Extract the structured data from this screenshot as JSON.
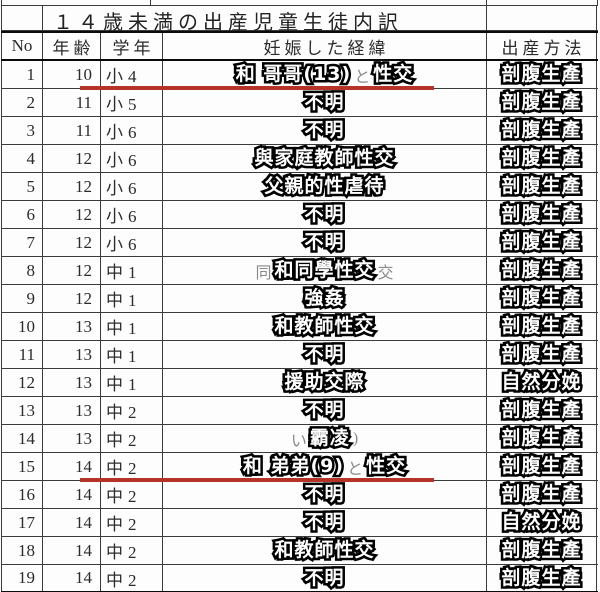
{
  "title": "１４歳未満の出産児童生徒内訳",
  "colors": {
    "underline": "#b5342a",
    "grid": "#3b3b3b",
    "overlay_fill": "#ffffff",
    "overlay_stroke": "#000000",
    "ghost": "#777777"
  },
  "table": {
    "headers": {
      "no": "No",
      "age": "年齢",
      "grade": "学年",
      "cause": "妊娠した経緯",
      "method": "出産方法"
    },
    "rows": [
      {
        "no": "1",
        "age": "10",
        "grade": "小4",
        "underline": true,
        "cause_parts": [
          {
            "t": "和 哥哥(13)",
            "s": "overlay"
          },
          {
            "t": "と",
            "s": "ghost"
          },
          {
            "t": "性交",
            "s": "overlay"
          }
        ],
        "method": "剖腹生產"
      },
      {
        "no": "2",
        "age": "11",
        "grade": "小5",
        "cause_parts": [
          {
            "t": "不明",
            "s": "overlay"
          }
        ],
        "method": "剖腹生產"
      },
      {
        "no": "3",
        "age": "11",
        "grade": "小6",
        "cause_parts": [
          {
            "t": "不明",
            "s": "overlay"
          }
        ],
        "method": "剖腹生產"
      },
      {
        "no": "4",
        "age": "12",
        "grade": "小6",
        "cause_parts": [
          {
            "t": "與家庭教師性交",
            "s": "overlay"
          }
        ],
        "method": "剖腹生產"
      },
      {
        "no": "5",
        "age": "12",
        "grade": "小6",
        "cause_parts": [
          {
            "t": "父親的性虐待",
            "s": "overlay"
          }
        ],
        "method": "剖腹生產"
      },
      {
        "no": "6",
        "age": "12",
        "grade": "小6",
        "cause_parts": [
          {
            "t": "不明",
            "s": "overlay"
          }
        ],
        "method": "剖腹生產"
      },
      {
        "no": "7",
        "age": "12",
        "grade": "小6",
        "cause_parts": [
          {
            "t": "不明",
            "s": "overlay"
          }
        ],
        "method": "剖腹生產"
      },
      {
        "no": "8",
        "age": "12",
        "grade": "中1",
        "cause_parts": [
          {
            "t": "同",
            "s": "ghost"
          },
          {
            "t": "和同學性交",
            "s": "overlay"
          },
          {
            "t": "交",
            "s": "ghost"
          }
        ],
        "method": "剖腹生產"
      },
      {
        "no": "9",
        "age": "12",
        "grade": "中1",
        "cause_parts": [
          {
            "t": "強姦",
            "s": "overlay"
          }
        ],
        "method": "剖腹生產"
      },
      {
        "no": "10",
        "age": "13",
        "grade": "中1",
        "cause_parts": [
          {
            "t": "和教師性交",
            "s": "overlay"
          }
        ],
        "method": "剖腹生產"
      },
      {
        "no": "11",
        "age": "13",
        "grade": "中1",
        "cause_parts": [
          {
            "t": "不明",
            "s": "overlay"
          }
        ],
        "method": "剖腹生產"
      },
      {
        "no": "12",
        "age": "13",
        "grade": "中1",
        "cause_parts": [
          {
            "t": "援助交際",
            "s": "overlay"
          }
        ],
        "method": "自然分娩"
      },
      {
        "no": "13",
        "age": "13",
        "grade": "中2",
        "cause_parts": [
          {
            "t": "不明",
            "s": "overlay"
          }
        ],
        "method": "剖腹生產"
      },
      {
        "no": "14",
        "age": "13",
        "grade": "中2",
        "cause_parts": [
          {
            "t": "い",
            "s": "ghost"
          },
          {
            "t": "霸凌",
            "s": "overlay"
          },
          {
            "t": ")",
            "s": "ghost"
          }
        ],
        "method": "剖腹生產"
      },
      {
        "no": "15",
        "age": "14",
        "grade": "中2",
        "underline": true,
        "cause_parts": [
          {
            "t": "和 弟弟(9)",
            "s": "overlay"
          },
          {
            "t": "と",
            "s": "ghost"
          },
          {
            "t": "性交",
            "s": "overlay"
          }
        ],
        "method": "剖腹生產"
      },
      {
        "no": "16",
        "age": "14",
        "grade": "中2",
        "cause_parts": [
          {
            "t": "不明",
            "s": "overlay"
          }
        ],
        "method": "剖腹生產"
      },
      {
        "no": "17",
        "age": "14",
        "grade": "中2",
        "cause_parts": [
          {
            "t": "不明",
            "s": "overlay"
          }
        ],
        "method": "自然分娩"
      },
      {
        "no": "18",
        "age": "14",
        "grade": "中2",
        "cause_parts": [
          {
            "t": "和教師性交",
            "s": "overlay"
          }
        ],
        "method": "剖腹生產"
      },
      {
        "no": "19",
        "age": "14",
        "grade": "中2",
        "cause_parts": [
          {
            "t": "不明",
            "s": "overlay"
          }
        ],
        "method": "剖腹生產"
      }
    ]
  }
}
